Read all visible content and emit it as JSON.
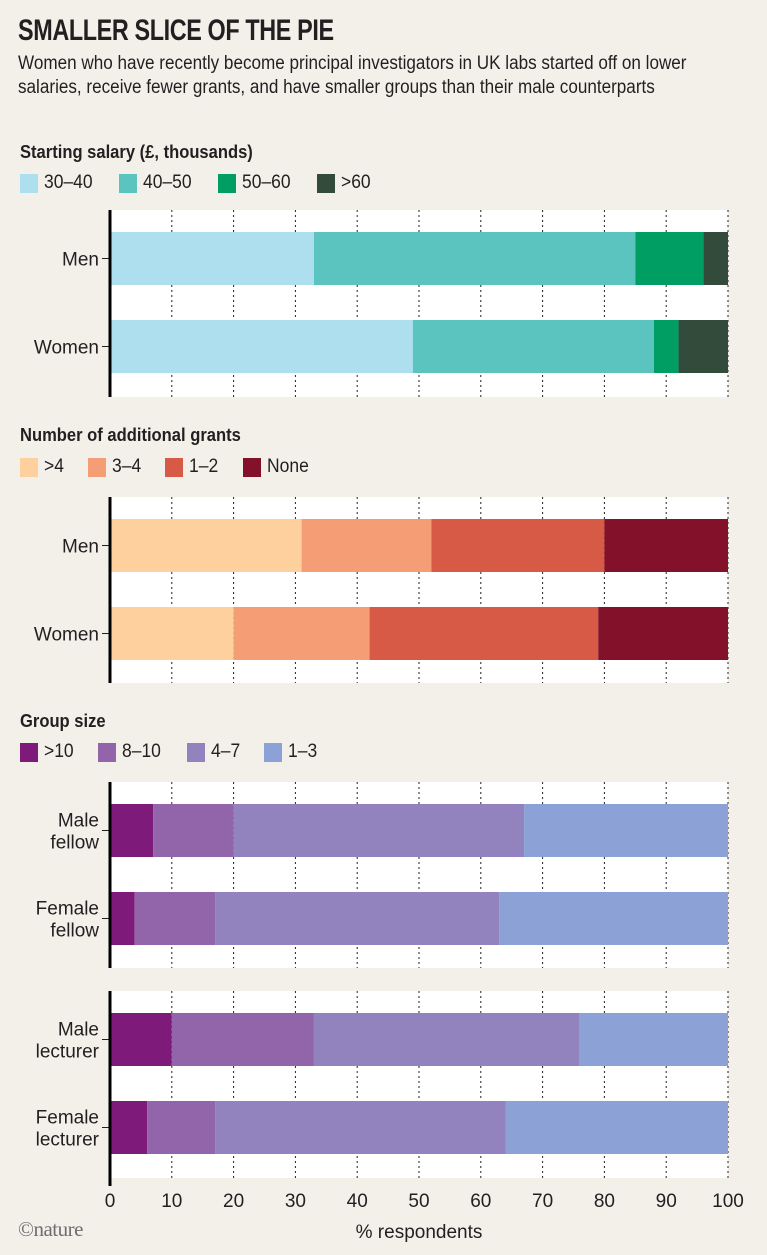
{
  "header": {
    "title": "SMALLER SLICE OF THE PIE",
    "subtitle": "Women who have recently become principal investigators in UK labs started off on lower salaries, receive fewer grants, and have smaller groups than their male counterparts"
  },
  "credit": "©nature",
  "chart_data": [
    {
      "type": "bar",
      "orientation": "horizontal",
      "stacked": true,
      "title": "Starting salary (£, thousands)",
      "categories": [
        "Men",
        "Women"
      ],
      "series": [
        {
          "name": "30–40",
          "color": "#ADDFEE",
          "values": [
            33,
            49
          ]
        },
        {
          "name": "40–50",
          "color": "#5CC4BE",
          "values": [
            52,
            39
          ]
        },
        {
          "name": "50–60",
          "color": "#009E63",
          "values": [
            11,
            4
          ]
        },
        {
          "name": ">60",
          "color": "#324B3A",
          "values": [
            4,
            8
          ]
        }
      ],
      "xlim": [
        0,
        100
      ],
      "grid": true,
      "legend": "top-left"
    },
    {
      "type": "bar",
      "orientation": "horizontal",
      "stacked": true,
      "title": "Number of additional grants",
      "categories": [
        "Men",
        "Women"
      ],
      "series": [
        {
          "name": ">4",
          "color": "#FDD09E",
          "values": [
            31,
            20
          ]
        },
        {
          "name": "3–4",
          "color": "#F59D74",
          "values": [
            21,
            22
          ]
        },
        {
          "name": "1–2",
          "color": "#D65A45",
          "values": [
            28,
            37
          ]
        },
        {
          "name": "None",
          "color": "#83112A",
          "values": [
            20,
            21
          ]
        }
      ],
      "xlim": [
        0,
        100
      ],
      "grid": true,
      "legend": "top-left"
    },
    {
      "type": "bar",
      "orientation": "horizontal",
      "stacked": true,
      "title": "Group size",
      "categories": [
        "Male fellow",
        "Female fellow",
        "Male lecturer",
        "Female lecturer"
      ],
      "category_lines": [
        [
          "Male",
          "fellow"
        ],
        [
          "Female",
          "fellow"
        ],
        [
          "Male",
          "lecturer"
        ],
        [
          "Female",
          "lecturer"
        ]
      ],
      "panels": [
        [
          0,
          1
        ],
        [
          2,
          3
        ]
      ],
      "series": [
        {
          "name": ">10",
          "color": "#7E1B7A",
          "values": [
            7,
            4,
            10,
            6
          ]
        },
        {
          "name": "8–10",
          "color": "#9265AB",
          "values": [
            13,
            13,
            23,
            11
          ]
        },
        {
          "name": "4–7",
          "color": "#9283BE",
          "values": [
            47,
            46,
            43,
            47
          ]
        },
        {
          "name": "1–3",
          "color": "#8CA2D6",
          "values": [
            33,
            37,
            24,
            36
          ]
        }
      ],
      "xlim": [
        0,
        100
      ],
      "xticks": [
        0,
        10,
        20,
        30,
        40,
        50,
        60,
        70,
        80,
        90,
        100
      ],
      "xlabel": "% respondents",
      "grid": true,
      "legend": "top-left"
    }
  ]
}
